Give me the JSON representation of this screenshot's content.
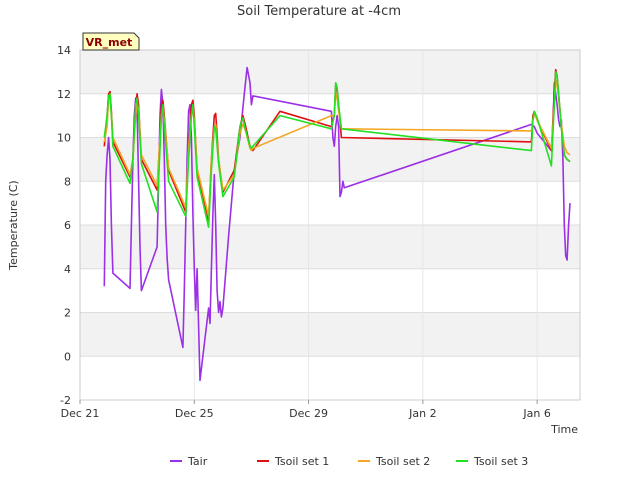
{
  "chart_data": {
    "type": "line",
    "title": "Soil Temperature at -4cm",
    "xlabel": "Time",
    "ylabel": "Temperature (C)",
    "station_label": "VR_met",
    "ylim": [
      -2,
      14
    ],
    "yticks": [
      -2,
      0,
      2,
      4,
      6,
      8,
      10,
      12,
      14
    ],
    "xlim": [
      0,
      17.5
    ],
    "xticks": [
      {
        "pos": 0,
        "label": "Dec 21"
      },
      {
        "pos": 4,
        "label": "Dec 25"
      },
      {
        "pos": 8,
        "label": "Dec 29"
      },
      {
        "pos": 12,
        "label": "Jan 2"
      },
      {
        "pos": 16,
        "label": "Jan 6"
      }
    ],
    "grid": true,
    "legend_position": "bottom",
    "series": [
      {
        "name": "Tair",
        "color": "#9b30e6",
        "points": [
          [
            0.85,
            3.2
          ],
          [
            0.9,
            8.0
          ],
          [
            0.95,
            9.2
          ],
          [
            1.0,
            10.0
          ],
          [
            1.05,
            9.0
          ],
          [
            1.1,
            6.0
          ],
          [
            1.15,
            3.8
          ],
          [
            1.75,
            3.1
          ],
          [
            1.8,
            6.0
          ],
          [
            1.85,
            9.0
          ],
          [
            1.9,
            11.0
          ],
          [
            1.95,
            11.8
          ],
          [
            2.0,
            11.2
          ],
          [
            2.05,
            8.0
          ],
          [
            2.1,
            5.0
          ],
          [
            2.15,
            3.0
          ],
          [
            2.7,
            5.0
          ],
          [
            2.75,
            8.0
          ],
          [
            2.8,
            11.0
          ],
          [
            2.85,
            12.2
          ],
          [
            2.9,
            11.5
          ],
          [
            2.95,
            9.0
          ],
          [
            3.0,
            6.0
          ],
          [
            3.05,
            4.5
          ],
          [
            3.1,
            3.5
          ],
          [
            3.15,
            3.2
          ],
          [
            3.6,
            0.4
          ],
          [
            3.65,
            3.0
          ],
          [
            3.7,
            6.0
          ],
          [
            3.75,
            9.0
          ],
          [
            3.8,
            11.2
          ],
          [
            3.85,
            11.5
          ],
          [
            3.9,
            10.0
          ],
          [
            3.95,
            6.5
          ],
          [
            4.0,
            4.0
          ],
          [
            4.05,
            2.1
          ],
          [
            4.1,
            4.0
          ],
          [
            4.2,
            -1.1
          ],
          [
            4.5,
            2.2
          ],
          [
            4.55,
            1.5
          ],
          [
            4.6,
            4.0
          ],
          [
            4.65,
            6.5
          ],
          [
            4.7,
            8.3
          ],
          [
            4.75,
            6.0
          ],
          [
            4.8,
            3.0
          ],
          [
            4.85,
            2.0
          ],
          [
            4.9,
            2.5
          ],
          [
            4.95,
            1.8
          ],
          [
            5.0,
            2.2
          ],
          [
            5.2,
            5.5
          ],
          [
            5.4,
            8.5
          ],
          [
            5.6,
            10.0
          ],
          [
            5.75,
            12.0
          ],
          [
            5.85,
            13.2
          ],
          [
            5.95,
            12.5
          ],
          [
            6.0,
            11.5
          ],
          [
            6.05,
            11.9
          ],
          [
            8.8,
            11.2
          ],
          [
            8.85,
            10.0
          ],
          [
            8.9,
            9.6
          ],
          [
            8.95,
            10.5
          ],
          [
            9.0,
            11.0
          ],
          [
            9.05,
            10.5
          ],
          [
            9.1,
            7.3
          ],
          [
            9.15,
            7.5
          ],
          [
            9.2,
            8.0
          ],
          [
            9.25,
            7.7
          ],
          [
            15.8,
            10.6
          ],
          [
            15.9,
            10.5
          ],
          [
            16.0,
            10.2
          ],
          [
            16.5,
            9.4
          ],
          [
            16.55,
            10.5
          ],
          [
            16.6,
            12.5
          ],
          [
            16.65,
            12.0
          ],
          [
            16.7,
            11.5
          ],
          [
            16.75,
            10.8
          ],
          [
            16.8,
            10.5
          ],
          [
            16.85,
            10.8
          ],
          [
            16.9,
            9.0
          ],
          [
            16.95,
            6.0
          ],
          [
            17.0,
            4.6
          ],
          [
            17.05,
            4.4
          ],
          [
            17.1,
            6.0
          ],
          [
            17.15,
            7.0
          ]
        ]
      },
      {
        "name": "Tsoil set 1",
        "color": "#e01010",
        "points": [
          [
            0.85,
            9.6
          ],
          [
            0.95,
            11.0
          ],
          [
            1.0,
            12.0
          ],
          [
            1.05,
            12.1
          ],
          [
            1.1,
            11.2
          ],
          [
            1.15,
            9.8
          ],
          [
            1.75,
            8.2
          ],
          [
            1.85,
            9.0
          ],
          [
            1.95,
            11.5
          ],
          [
            2.0,
            12.0
          ],
          [
            2.05,
            11.5
          ],
          [
            2.15,
            9.0
          ],
          [
            2.7,
            7.6
          ],
          [
            2.8,
            10.0
          ],
          [
            2.85,
            11.5
          ],
          [
            2.9,
            11.7
          ],
          [
            2.95,
            11.0
          ],
          [
            3.1,
            8.5
          ],
          [
            3.7,
            6.6
          ],
          [
            3.8,
            9.5
          ],
          [
            3.9,
            11.5
          ],
          [
            3.95,
            11.7
          ],
          [
            4.0,
            11.0
          ],
          [
            4.1,
            8.5
          ],
          [
            4.5,
            6.2
          ],
          [
            4.6,
            9.0
          ],
          [
            4.7,
            11.0
          ],
          [
            4.75,
            11.1
          ],
          [
            4.85,
            9.0
          ],
          [
            5.0,
            7.5
          ],
          [
            5.4,
            8.5
          ],
          [
            5.6,
            10.5
          ],
          [
            5.7,
            11.0
          ],
          [
            5.8,
            10.5
          ],
          [
            5.95,
            9.6
          ],
          [
            6.0,
            9.5
          ],
          [
            6.05,
            9.4
          ],
          [
            7.0,
            11.2
          ],
          [
            8.8,
            10.5
          ],
          [
            8.9,
            11.0
          ],
          [
            8.95,
            12.4
          ],
          [
            9.0,
            12.2
          ],
          [
            9.05,
            11.5
          ],
          [
            9.15,
            10.0
          ],
          [
            15.8,
            9.8
          ],
          [
            15.85,
            11.0
          ],
          [
            15.9,
            11.2
          ],
          [
            16.0,
            10.8
          ],
          [
            16.5,
            9.4
          ],
          [
            16.6,
            12.0
          ],
          [
            16.65,
            13.1
          ],
          [
            16.7,
            12.8
          ],
          [
            16.75,
            12.0
          ],
          [
            16.85,
            10.5
          ],
          [
            16.95,
            9.2
          ],
          [
            17.05,
            9.0
          ],
          [
            17.15,
            8.9
          ]
        ]
      },
      {
        "name": "Tsoil set 2",
        "color": "#f5a623",
        "points": [
          [
            0.85,
            9.8
          ],
          [
            0.95,
            10.5
          ],
          [
            1.0,
            11.8
          ],
          [
            1.05,
            11.9
          ],
          [
            1.1,
            11.0
          ],
          [
            1.15,
            10.0
          ],
          [
            1.75,
            8.3
          ],
          [
            1.85,
            9.0
          ],
          [
            1.95,
            11.0
          ],
          [
            2.0,
            11.6
          ],
          [
            2.05,
            11.3
          ],
          [
            2.15,
            9.2
          ],
          [
            2.7,
            7.8
          ],
          [
            2.8,
            10.0
          ],
          [
            2.85,
            11.0
          ],
          [
            2.9,
            11.4
          ],
          [
            2.95,
            10.8
          ],
          [
            3.1,
            8.6
          ],
          [
            3.7,
            6.8
          ],
          [
            3.8,
            9.5
          ],
          [
            3.9,
            11.0
          ],
          [
            3.95,
            11.3
          ],
          [
            4.0,
            10.8
          ],
          [
            4.1,
            8.6
          ],
          [
            4.5,
            6.4
          ],
          [
            4.6,
            9.0
          ],
          [
            4.7,
            10.5
          ],
          [
            4.75,
            10.6
          ],
          [
            4.85,
            9.0
          ],
          [
            5.0,
            7.6
          ],
          [
            5.4,
            8.3
          ],
          [
            5.6,
            10.2
          ],
          [
            5.7,
            10.6
          ],
          [
            5.8,
            10.3
          ],
          [
            5.95,
            9.5
          ],
          [
            6.0,
            9.4
          ],
          [
            6.05,
            9.5
          ],
          [
            8.8,
            11.0
          ],
          [
            8.9,
            11.0
          ],
          [
            8.95,
            12.0
          ],
          [
            9.0,
            11.8
          ],
          [
            9.05,
            11.2
          ],
          [
            9.15,
            10.4
          ],
          [
            15.8,
            10.3
          ],
          [
            15.85,
            10.8
          ],
          [
            15.9,
            11.1
          ],
          [
            16.0,
            10.8
          ],
          [
            16.5,
            9.5
          ],
          [
            16.6,
            11.5
          ],
          [
            16.65,
            12.6
          ],
          [
            16.7,
            12.4
          ],
          [
            16.75,
            11.8
          ],
          [
            16.85,
            10.6
          ],
          [
            16.95,
            9.6
          ],
          [
            17.05,
            9.3
          ],
          [
            17.15,
            9.2
          ]
        ]
      },
      {
        "name": "Tsoil set 3",
        "color": "#22e022",
        "points": [
          [
            0.85,
            10.0
          ],
          [
            0.95,
            11.0
          ],
          [
            1.0,
            11.9
          ],
          [
            1.05,
            12.0
          ],
          [
            1.1,
            11.0
          ],
          [
            1.15,
            9.6
          ],
          [
            1.75,
            7.9
          ],
          [
            1.85,
            9.0
          ],
          [
            1.95,
            11.5
          ],
          [
            2.0,
            11.8
          ],
          [
            2.05,
            11.0
          ],
          [
            2.15,
            8.8
          ],
          [
            2.7,
            6.6
          ],
          [
            2.8,
            9.5
          ],
          [
            2.85,
            11.0
          ],
          [
            2.9,
            11.5
          ],
          [
            2.95,
            10.5
          ],
          [
            3.1,
            8.0
          ],
          [
            3.7,
            6.4
          ],
          [
            3.8,
            9.0
          ],
          [
            3.9,
            11.0
          ],
          [
            3.95,
            11.5
          ],
          [
            4.0,
            10.5
          ],
          [
            4.1,
            8.2
          ],
          [
            4.5,
            5.9
          ],
          [
            4.6,
            8.5
          ],
          [
            4.7,
            10.5
          ],
          [
            4.75,
            10.4
          ],
          [
            4.85,
            8.8
          ],
          [
            5.0,
            7.3
          ],
          [
            5.4,
            8.2
          ],
          [
            5.6,
            10.5
          ],
          [
            5.7,
            10.9
          ],
          [
            5.8,
            10.3
          ],
          [
            5.95,
            9.6
          ],
          [
            6.0,
            9.5
          ],
          [
            6.05,
            9.6
          ],
          [
            7.0,
            11.0
          ],
          [
            8.8,
            10.4
          ],
          [
            8.9,
            11.0
          ],
          [
            8.95,
            12.5
          ],
          [
            9.0,
            12.3
          ],
          [
            9.05,
            11.5
          ],
          [
            9.15,
            10.4
          ],
          [
            15.8,
            9.4
          ],
          [
            15.85,
            10.8
          ],
          [
            15.9,
            11.2
          ],
          [
            16.0,
            10.9
          ],
          [
            16.5,
            8.7
          ],
          [
            16.6,
            11.5
          ],
          [
            16.65,
            13.0
          ],
          [
            16.7,
            12.8
          ],
          [
            16.75,
            12.0
          ],
          [
            16.85,
            10.4
          ],
          [
            16.95,
            9.2
          ],
          [
            17.05,
            9.0
          ],
          [
            17.15,
            8.9
          ]
        ]
      }
    ]
  }
}
